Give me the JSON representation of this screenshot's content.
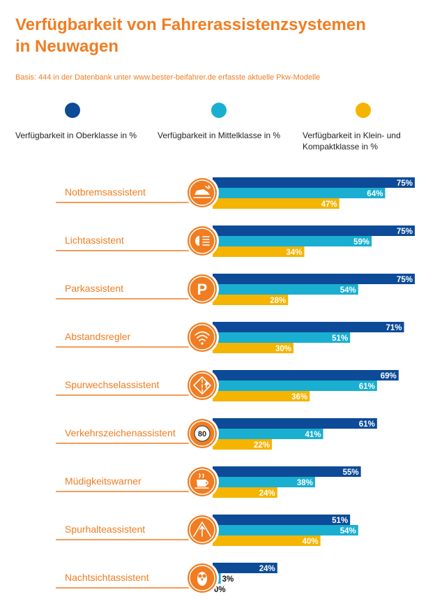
{
  "title_line1": "Verfügbarkeit von Fahrerassistenzsystemen",
  "title_line2": "in Neuwagen",
  "basis": "Basis: 444 in der Datenbank unter www.bester-beifahrer.de erfasste aktuelle Pkw-Modelle",
  "colors": {
    "accent": "#f07d22",
    "ober": "#0d4a97",
    "mittel": "#1aafd0",
    "klein": "#f5b400"
  },
  "legend": {
    "ober": "Verfügbarkeit in Oberklasse in %",
    "mittel": "Verfügbarkeit in Mittelklasse in %",
    "klein_line1": "Verfügbarkeit in Klein- und",
    "klein_line2": "Kompaktklasse in %"
  },
  "chart_data": {
    "type": "bar",
    "orientation": "horizontal",
    "unit": "%",
    "categories": [
      {
        "label": "Notbremsassistent",
        "icon": "car-crash-icon"
      },
      {
        "label": "Lichtassistent",
        "icon": "headlight-icon"
      },
      {
        "label": "Parkassistent",
        "icon": "parking-icon"
      },
      {
        "label": "Abstandsregler",
        "icon": "distance-radar-icon"
      },
      {
        "label": "Spurwechselassistent",
        "icon": "lane-change-icon"
      },
      {
        "label": "Verkehrszeichenassistent",
        "icon": "speed-sign-icon",
        "icon_text": "80"
      },
      {
        "label": "Müdigkeitswarner",
        "icon": "coffee-cup-icon"
      },
      {
        "label": "Spurhalteassistent",
        "icon": "lane-keep-icon"
      },
      {
        "label": "Nachtsichtassistent",
        "icon": "owl-icon"
      }
    ],
    "series": [
      {
        "name": "Verfügbarkeit in Oberklasse in %",
        "key": "ober",
        "values": [
          75,
          75,
          75,
          71,
          69,
          61,
          55,
          51,
          24
        ]
      },
      {
        "name": "Verfügbarkeit in Mittelklasse in %",
        "key": "mittel",
        "values": [
          64,
          59,
          54,
          51,
          61,
          41,
          38,
          54,
          3
        ]
      },
      {
        "name": "Verfügbarkeit in Klein- und Kompaktklasse in %",
        "key": "klein",
        "values": [
          47,
          34,
          28,
          30,
          36,
          22,
          24,
          40,
          0
        ]
      }
    ],
    "xlim": [
      0,
      75
    ]
  }
}
